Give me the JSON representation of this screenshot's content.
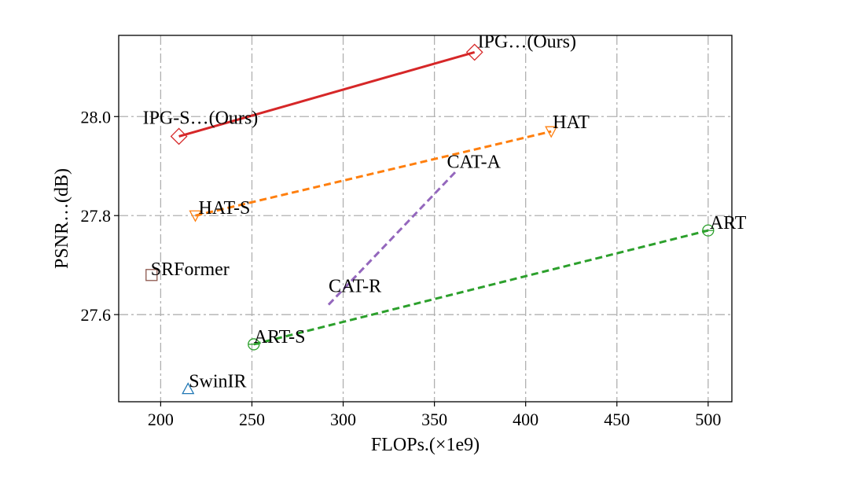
{
  "chart_data": {
    "type": "scatter",
    "xlabel": "FLOPs.(×1e9)",
    "ylabel": "PSNR…(dB)",
    "xlim": [
      177,
      513
    ],
    "ylim": [
      27.424,
      28.164
    ],
    "xticks": [
      200,
      250,
      300,
      350,
      400,
      450,
      500
    ],
    "yticks": [
      27.6,
      27.8,
      28.0
    ],
    "ytick_labels": [
      "27.6",
      "27.8",
      "28.0"
    ],
    "grid": true,
    "points": [
      {
        "label": "IPG…(Ours)",
        "x": 372,
        "y": 28.13,
        "marker": "diamond",
        "color": "#d62728"
      },
      {
        "label": "IPG-S…(Ours)",
        "x": 210,
        "y": 27.96,
        "marker": "diamond",
        "color": "#d62728"
      },
      {
        "label": "HAT",
        "x": 414,
        "y": 27.97,
        "marker": "triangle-down",
        "color": "#ff7f0e"
      },
      {
        "label": "HAT-S",
        "x": 219,
        "y": 27.8,
        "marker": "triangle-down",
        "color": "#ff7f0e"
      },
      {
        "label": "CAT-A",
        "x": 362,
        "y": 27.89,
        "marker": "none",
        "color": "#9467bd"
      },
      {
        "label": "CAT-R",
        "x": 292,
        "y": 27.62,
        "marker": "none",
        "color": "#9467bd"
      },
      {
        "label": "ART",
        "x": 500,
        "y": 27.77,
        "marker": "circle",
        "color": "#2ca02c"
      },
      {
        "label": "ART-S",
        "x": 251,
        "y": 27.54,
        "marker": "circle",
        "color": "#2ca02c"
      },
      {
        "label": "SRFormer",
        "x": 195,
        "y": 27.68,
        "marker": "square",
        "color": "#8c564b"
      },
      {
        "label": "SwinIR",
        "x": 215,
        "y": 27.45,
        "marker": "triangle-up",
        "color": "#1f77b4"
      }
    ],
    "lines": [
      {
        "from": "IPG-S…(Ours)",
        "to": "IPG…(Ours)",
        "style": "solid",
        "color": "#d62728"
      },
      {
        "from": "HAT-S",
        "to": "HAT",
        "style": "dashed",
        "color": "#ff7f0e"
      },
      {
        "from": "CAT-R",
        "to": "CAT-A",
        "style": "dashed",
        "color": "#9467bd"
      },
      {
        "from": "ART-S",
        "to": "ART",
        "style": "dashed",
        "color": "#2ca02c"
      }
    ]
  }
}
